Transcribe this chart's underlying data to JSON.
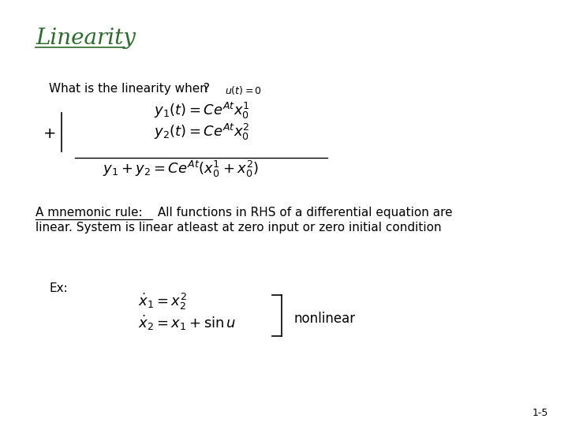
{
  "title": "Linearity",
  "title_color": "#2d6a2d",
  "bg_color": "#ffffff",
  "slide_number": "1-5",
  "text_color": "#000000",
  "what_is_text": "What is the linearity when",
  "question_mark": "?",
  "ut_eq": "$u(t)=0$",
  "eq1": "$y_1(t) = Ce^{At}x_0^1$",
  "eq2": "$y_2(t) = Ce^{At}x_0^2$",
  "eq3": "$y_1 + y_2 = Ce^{At}(x_0^1 + x_0^2)$",
  "plus_sign": "+",
  "mnemonic_underline": "A mnemonic rule:",
  "mnemonic_line1_rest": " All functions in RHS of a differential equation are",
  "mnemonic_line2": "linear. System is linear atleast at zero input or zero initial condition",
  "ex_label": "Ex:",
  "ex_eq1": "$\\dot{x}_1 = x_2^2$",
  "ex_eq2": "$\\dot{x}_2 = x_1 + \\sin u$",
  "nonlinear": "nonlinear"
}
